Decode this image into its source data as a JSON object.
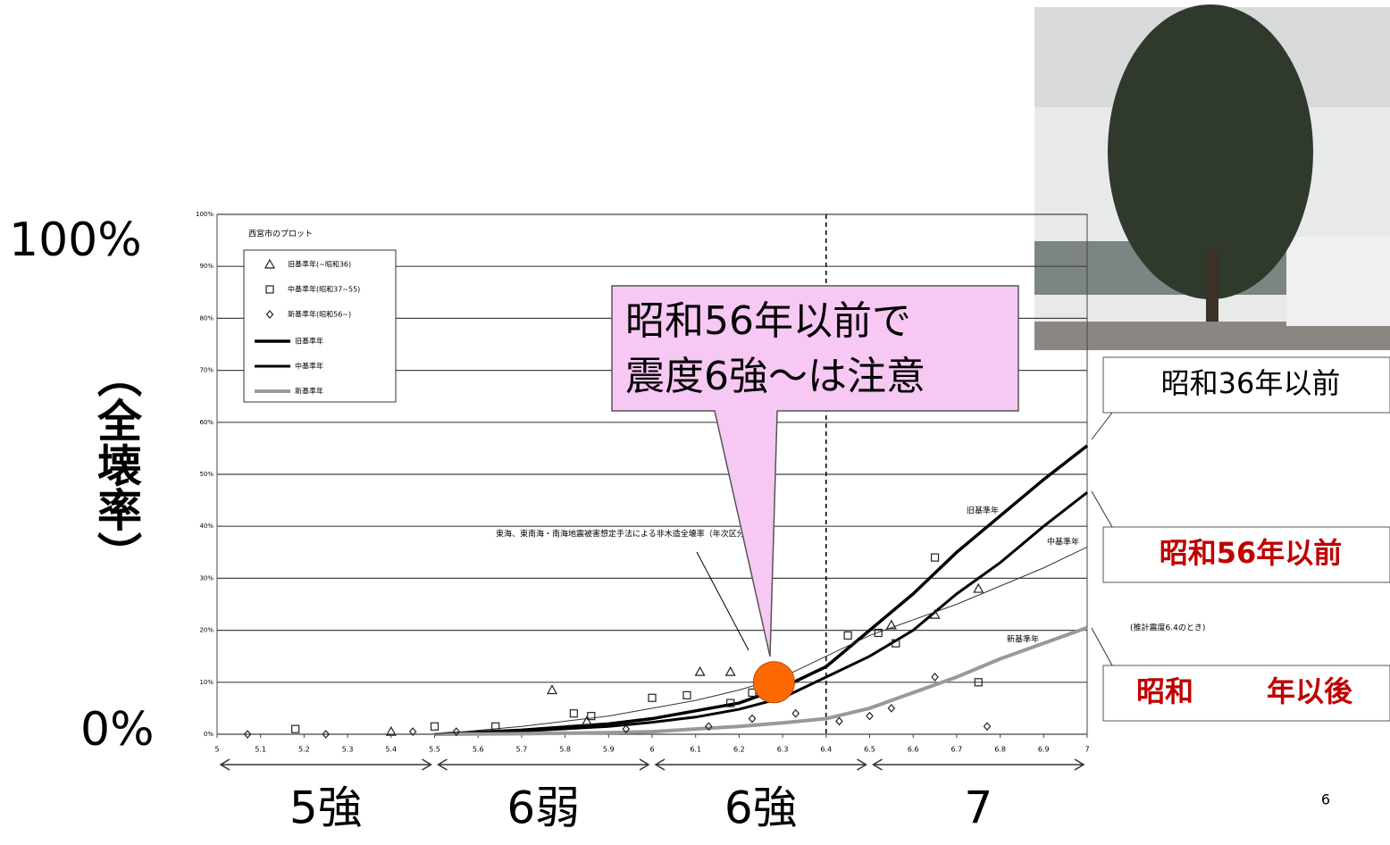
{
  "chart_data": {
    "type": "line",
    "legend_title": "西宮市のプロット",
    "x": [
      5.5,
      5.7,
      5.9,
      6.0,
      6.1,
      6.2,
      6.3,
      6.4,
      6.5,
      6.6,
      6.7,
      6.8,
      6.9,
      7.0
    ],
    "series": [
      {
        "name": "旧基準年",
        "color": "#000000",
        "values": [
          0,
          0.8,
          2,
          3,
          4.5,
          6,
          9,
          13,
          20,
          27,
          35,
          42,
          49,
          55.5
        ]
      },
      {
        "name": "中基準年",
        "color": "#000000",
        "values": [
          0,
          0.6,
          1.5,
          2.3,
          3.3,
          4.8,
          7,
          11,
          15,
          20,
          27,
          33,
          40,
          46.5
        ]
      },
      {
        "name": "新基準年",
        "color": "#999999",
        "values": [
          0,
          0.1,
          0.3,
          0.5,
          1,
          1.5,
          2.2,
          3,
          5,
          8,
          11,
          14.5,
          17.5,
          20.5
        ]
      },
      {
        "name": "東海、東南海・南海地震被害想定手法による非木造全壊率（年次区分なし）",
        "color": "#333333",
        "values": [
          0,
          1.5,
          3.5,
          5,
          6.5,
          8.5,
          11,
          15,
          19,
          22,
          25,
          28.5,
          32,
          36
        ]
      }
    ],
    "points": [
      {
        "name": "旧基準年(~昭和36)",
        "marker": "triangle",
        "x": [
          5.4,
          5.77,
          5.85,
          6.11,
          6.18,
          6.3,
          6.55,
          6.65,
          6.75
        ],
        "values": [
          0.5,
          8.5,
          2.5,
          12,
          12,
          9,
          21,
          23,
          28
        ]
      },
      {
        "name": "中基準年(昭和37~55)",
        "marker": "square",
        "x": [
          5.18,
          5.5,
          5.64,
          5.82,
          5.86,
          6.0,
          6.08,
          6.18,
          6.23,
          6.45,
          6.52,
          6.56,
          6.65,
          6.75
        ],
        "values": [
          1,
          1.5,
          1.5,
          4,
          3.5,
          7,
          7.5,
          6,
          8,
          19,
          19.5,
          17.5,
          34,
          10
        ]
      },
      {
        "name": "新基準年(昭和56~)",
        "marker": "diamond",
        "x": [
          5.07,
          5.25,
          5.45,
          5.55,
          5.94,
          6.13,
          6.23,
          6.33,
          6.43,
          6.5,
          6.55,
          6.65,
          6.77
        ],
        "values": [
          0,
          0,
          0.5,
          0.5,
          1,
          1.5,
          3,
          4,
          2.5,
          3.5,
          5,
          11,
          1.5
        ]
      }
    ],
    "highlight": {
      "x": 6.28,
      "y": 10
    },
    "xlim": [
      5,
      7
    ],
    "xticks": [
      5,
      5.1,
      5.2,
      5.3,
      5.4,
      5.5,
      5.6,
      5.7,
      5.8,
      5.9,
      6,
      6.1,
      6.2,
      6.3,
      6.4,
      6.5,
      6.6,
      6.7,
      6.8,
      6.9,
      7
    ],
    "ylim": [
      0,
      100
    ],
    "yticks": [
      {
        "value": 0,
        "label": "0%"
      },
      {
        "value": 10,
        "label": "10%"
      },
      {
        "value": 20,
        "label": "20%"
      },
      {
        "value": 30,
        "label": "30%"
      },
      {
        "value": 40,
        "label": "40%"
      },
      {
        "value": 50,
        "label": "50%"
      },
      {
        "value": 60,
        "label": "60%"
      },
      {
        "value": 70,
        "label": "70%"
      },
      {
        "value": 80,
        "label": "80%"
      },
      {
        "value": 90,
        "label": "90%"
      },
      {
        "value": 100,
        "label": "100%"
      }
    ],
    "grid": true,
    "marker_line": 6.4,
    "y_top_label": "100%",
    "y_bottom_label": "0%",
    "y_axis_label": "（全壊率）",
    "intensity_bands": [
      {
        "label": "5強",
        "range": [
          5,
          5.5
        ]
      },
      {
        "label": "6弱",
        "range": [
          5.5,
          6
        ]
      },
      {
        "label": "6強",
        "range": [
          6,
          6.5
        ]
      },
      {
        "label": "7",
        "range": [
          6.5,
          7
        ]
      }
    ],
    "callout": [
      "昭和56年以前で",
      "震度6強～は注意"
    ],
    "note": "(推計震度6.4のとき)",
    "boxes": [
      "昭和36年以前",
      "昭和56年以前",
      "昭和",
      "年以後"
    ],
    "page_number": "6"
  }
}
